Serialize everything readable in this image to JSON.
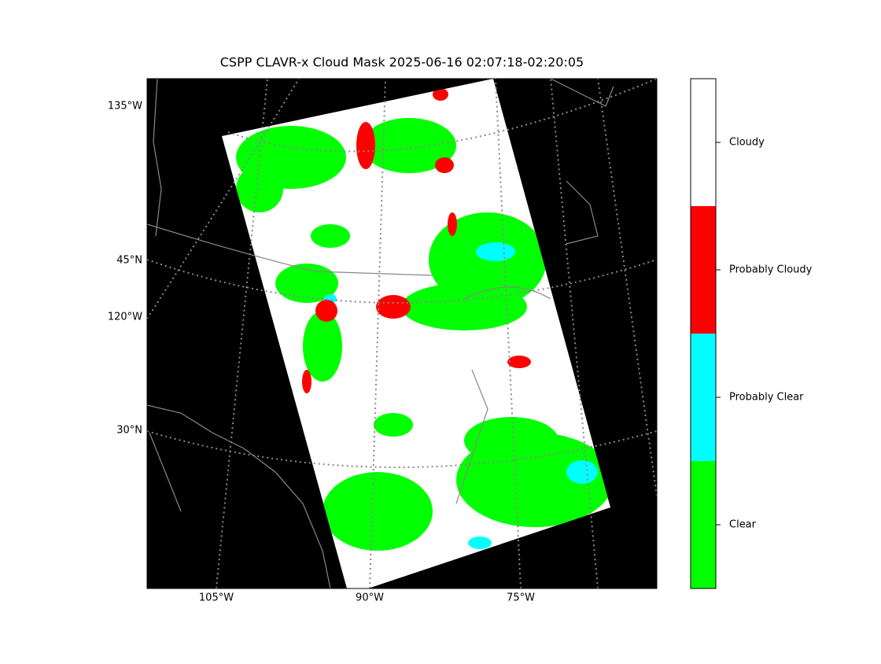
{
  "title": "CSPP CLAVR-x Cloud Mask 2025-06-16 02:07:18-02:20:05",
  "map": {
    "left_labels": [
      "135°W",
      "45°N",
      "120°W",
      "30°N"
    ],
    "bottom_labels": [
      "105°W",
      "90°W",
      "75°W"
    ]
  },
  "colorbar": {
    "classes": [
      {
        "label": "Cloudy",
        "color": "#ffffff"
      },
      {
        "label": "Probably Cloudy",
        "color": "#ff0000"
      },
      {
        "label": "Probably Clear",
        "color": "#00ffff"
      },
      {
        "label": "Clear",
        "color": "#00ff00"
      }
    ]
  }
}
